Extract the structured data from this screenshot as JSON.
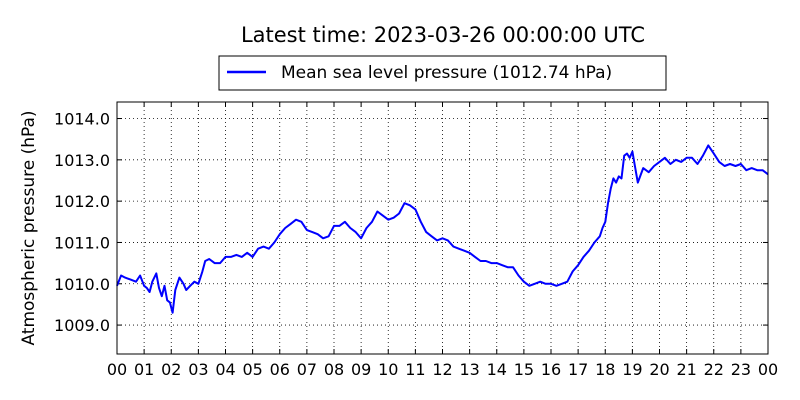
{
  "chart_data": {
    "type": "line",
    "title": "Latest time: 2023-03-26 00:00:00 UTC",
    "xlabel": "",
    "ylabel": "Atmospheric pressure (hPa)",
    "xlim": [
      0,
      24
    ],
    "ylim": [
      1008.3,
      1014.4
    ],
    "x_ticks": [
      0,
      1,
      2,
      3,
      4,
      5,
      6,
      7,
      8,
      9,
      10,
      11,
      12,
      13,
      14,
      15,
      16,
      17,
      18,
      19,
      20,
      21,
      22,
      23,
      24
    ],
    "x_tick_labels": [
      "00",
      "01",
      "02",
      "03",
      "04",
      "05",
      "06",
      "07",
      "08",
      "09",
      "10",
      "11",
      "12",
      "13",
      "14",
      "15",
      "16",
      "17",
      "18",
      "19",
      "20",
      "21",
      "22",
      "23",
      "00"
    ],
    "y_ticks": [
      1009.0,
      1010.0,
      1011.0,
      1012.0,
      1013.0,
      1014.0
    ],
    "y_tick_labels": [
      "1009.0",
      "1010.0",
      "1011.0",
      "1012.0",
      "1013.0",
      "1014.0"
    ],
    "grid": true,
    "legend_position": "top-center-outside",
    "series": [
      {
        "name": "Mean sea level pressure (1012.74 hPa)",
        "color": "#0000ff",
        "x": [
          0.0,
          0.15,
          0.3,
          0.5,
          0.7,
          0.85,
          1.0,
          1.1,
          1.2,
          1.3,
          1.45,
          1.55,
          1.65,
          1.75,
          1.85,
          1.95,
          2.05,
          2.15,
          2.3,
          2.45,
          2.55,
          2.7,
          2.85,
          3.0,
          3.15,
          3.25,
          3.4,
          3.6,
          3.8,
          4.0,
          4.2,
          4.4,
          4.6,
          4.8,
          5.0,
          5.2,
          5.4,
          5.6,
          5.8,
          6.0,
          6.2,
          6.4,
          6.6,
          6.8,
          7.0,
          7.2,
          7.4,
          7.6,
          7.8,
          8.0,
          8.2,
          8.4,
          8.6,
          8.8,
          9.0,
          9.2,
          9.4,
          9.6,
          9.8,
          10.0,
          10.2,
          10.4,
          10.6,
          10.8,
          11.0,
          11.2,
          11.4,
          11.6,
          11.8,
          12.0,
          12.2,
          12.4,
          12.6,
          12.8,
          13.0,
          13.2,
          13.4,
          13.6,
          13.8,
          14.0,
          14.2,
          14.4,
          14.6,
          14.8,
          15.0,
          15.2,
          15.4,
          15.6,
          15.8,
          16.0,
          16.2,
          16.4,
          16.6,
          16.8,
          17.0,
          17.2,
          17.4,
          17.6,
          17.8,
          17.9,
          18.0,
          18.1,
          18.2,
          18.3,
          18.4,
          18.5,
          18.6,
          18.7,
          18.8,
          18.9,
          19.0,
          19.2,
          19.4,
          19.6,
          19.8,
          20.0,
          20.2,
          20.4,
          20.6,
          20.8,
          21.0,
          21.2,
          21.4,
          21.6,
          21.8,
          22.0,
          22.2,
          22.4,
          22.6,
          22.8,
          23.0,
          23.2,
          23.4,
          23.6,
          23.8,
          24.0
        ],
        "y": [
          1009.95,
          1010.2,
          1010.15,
          1010.1,
          1010.05,
          1010.2,
          1009.95,
          1009.9,
          1009.8,
          1010.05,
          1010.25,
          1009.9,
          1009.7,
          1009.95,
          1009.6,
          1009.55,
          1009.3,
          1009.85,
          1010.15,
          1010.0,
          1009.85,
          1009.95,
          1010.05,
          1010.0,
          1010.3,
          1010.55,
          1010.6,
          1010.5,
          1010.5,
          1010.65,
          1010.65,
          1010.7,
          1010.65,
          1010.75,
          1010.65,
          1010.85,
          1010.9,
          1010.85,
          1011.0,
          1011.2,
          1011.35,
          1011.45,
          1011.55,
          1011.5,
          1011.3,
          1011.25,
          1011.2,
          1011.1,
          1011.15,
          1011.4,
          1011.4,
          1011.5,
          1011.35,
          1011.25,
          1011.1,
          1011.35,
          1011.5,
          1011.75,
          1011.65,
          1011.55,
          1011.6,
          1011.7,
          1011.95,
          1011.9,
          1011.8,
          1011.5,
          1011.25,
          1011.15,
          1011.05,
          1011.1,
          1011.05,
          1010.9,
          1010.85,
          1010.8,
          1010.75,
          1010.65,
          1010.55,
          1010.55,
          1010.5,
          1010.5,
          1010.45,
          1010.4,
          1010.4,
          1010.2,
          1010.05,
          1009.95,
          1010.0,
          1010.05,
          1010.0,
          1010.0,
          1009.95,
          1010.0,
          1010.05,
          1010.3,
          1010.45,
          1010.65,
          1010.8,
          1011.0,
          1011.15,
          1011.35,
          1011.5,
          1011.95,
          1012.3,
          1012.55,
          1012.45,
          1012.6,
          1012.55,
          1013.1,
          1013.15,
          1013.05,
          1013.2,
          1012.45,
          1012.8,
          1012.7,
          1012.85,
          1012.95,
          1013.05,
          1012.9,
          1013.0,
          1012.95,
          1013.05,
          1013.05,
          1012.9,
          1013.1,
          1013.35,
          1013.15,
          1012.95,
          1012.85,
          1012.9,
          1012.85,
          1012.9,
          1012.75,
          1012.8,
          1012.75,
          1012.75,
          1012.65
        ]
      }
    ]
  }
}
